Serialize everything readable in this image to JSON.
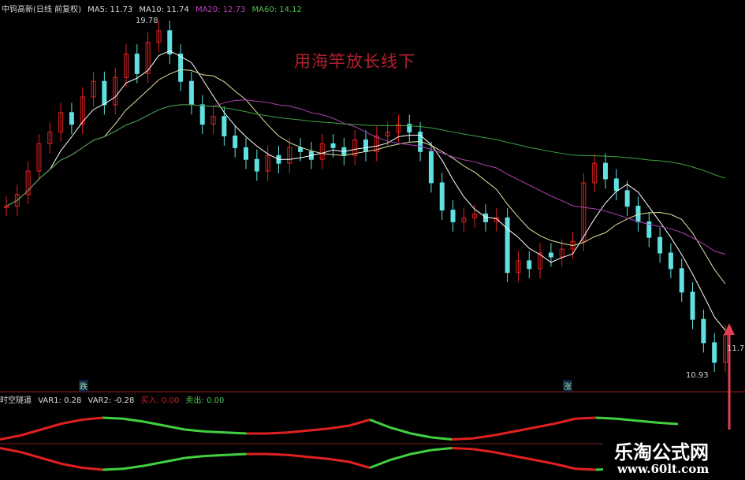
{
  "header": {
    "title": "中钨高新(日线 前复权)",
    "ma5": "MA5: 11.73",
    "ma10": "MA10: 11.74",
    "ma20": "MA20: 12.73",
    "ma60": "MA60: 14.12"
  },
  "slogan": "用海竿放长线下",
  "annotations": {
    "high": "19.78",
    "low": "10.93",
    "last": "11.7"
  },
  "signals": {
    "first": "跌",
    "second": "涨"
  },
  "indicator": {
    "name": "时空隧道",
    "var1": "VAR1: 0.28",
    "var2": "VAR2: -0.28",
    "buy": "买入: 0.00",
    "sell": "卖出: 0.00"
  },
  "watermark": {
    "name": "乐淘公式网",
    "url": "www.60lt.com"
  },
  "colors": {
    "up": "#e02020",
    "down": "#60e0e0",
    "ma5": "#ffffff",
    "ma10": "#e0e0a0",
    "ma20": "#b040b0",
    "ma60": "#40a040",
    "osc_up": "#e02020",
    "osc_down": "#40d040",
    "divider": "#a02020"
  },
  "chart_data": {
    "type": "candlestick",
    "high": 19.78,
    "low": 10.93,
    "closes": [
      15.0,
      15.3,
      15.9,
      16.6,
      16.9,
      17.4,
      17.1,
      17.8,
      18.2,
      17.6,
      18.3,
      18.9,
      18.4,
      19.2,
      19.5,
      18.9,
      18.2,
      17.6,
      17.1,
      17.3,
      16.8,
      16.5,
      16.2,
      15.9,
      16.3,
      16.1,
      16.5,
      16.4,
      16.2,
      16.6,
      16.5,
      16.3,
      16.7,
      16.4,
      16.8,
      16.9,
      17.1,
      16.9,
      16.4,
      15.6,
      14.9,
      14.6,
      14.7,
      14.8,
      14.6,
      14.7,
      13.3,
      13.6,
      13.4,
      13.8,
      13.7,
      13.9,
      14.1,
      15.6,
      16.1,
      15.7,
      15.4,
      15.0,
      14.6,
      14.2,
      13.8,
      13.4,
      12.8,
      12.1,
      11.5,
      11.0,
      11.7
    ],
    "osc_var1": [
      -0.5,
      -0.3,
      0.0,
      0.3,
      0.5,
      0.6,
      0.55,
      0.4,
      0.2,
      0.0,
      -0.1,
      -0.15,
      -0.2,
      -0.2,
      -0.15,
      -0.05,
      0.05,
      0.2,
      0.5,
      0.1,
      -0.2,
      -0.4,
      -0.5,
      -0.45,
      -0.3,
      -0.1,
      0.1,
      0.3,
      0.55,
      0.6,
      0.55,
      0.45,
      0.35,
      0.28
    ]
  }
}
